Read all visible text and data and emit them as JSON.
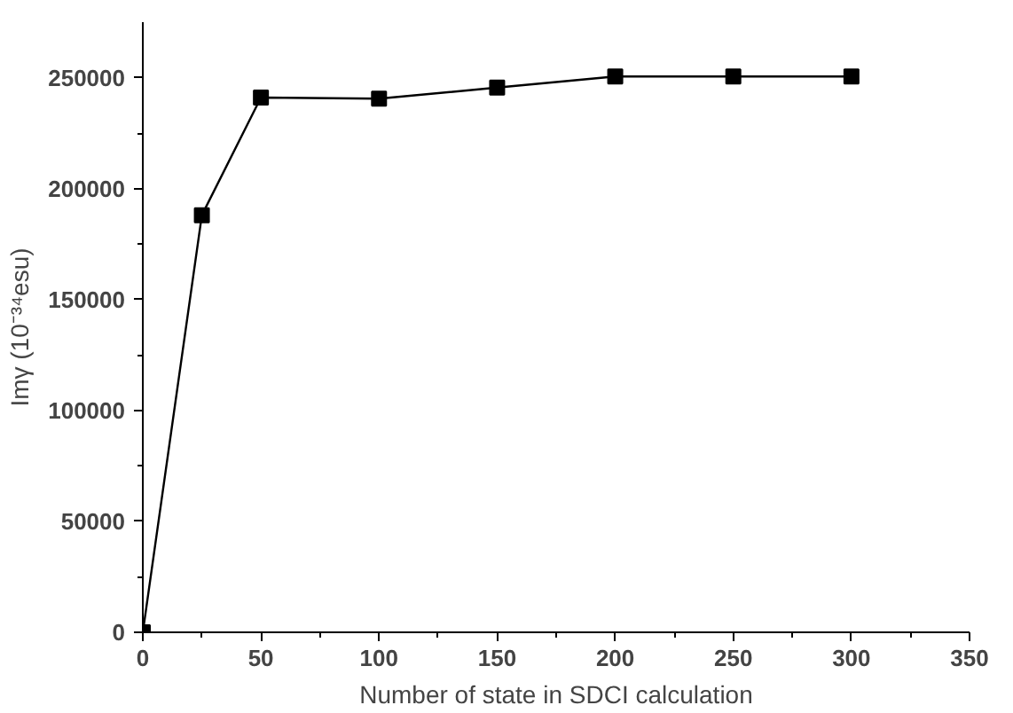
{
  "chart_data": {
    "type": "line",
    "xlabel": "Number of state in SDCI calculation",
    "ylabel": "Imγ (10⁻³⁴esu)",
    "x": [
      0,
      25,
      50,
      100,
      150,
      200,
      250,
      300
    ],
    "series": [
      {
        "color": "#000000",
        "values": [
          0,
          188000,
          241000,
          240500,
          245500,
          250500,
          250500,
          250500
        ]
      }
    ],
    "xlim": [
      0,
      350
    ],
    "ylim": [
      0,
      275000
    ],
    "xticks": [
      0,
      50,
      100,
      150,
      200,
      250,
      300,
      350
    ],
    "yticks": [
      0,
      50000,
      100000,
      150000,
      200000,
      250000
    ],
    "marker": "square",
    "line_style": "solid",
    "grid": false
  }
}
